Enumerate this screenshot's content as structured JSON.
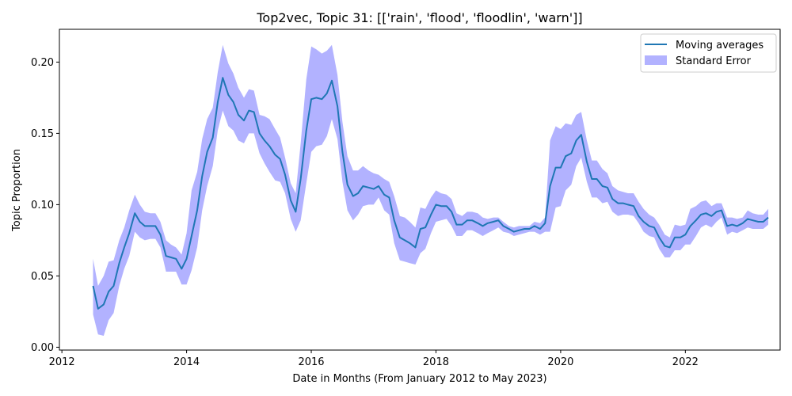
{
  "chart_data": {
    "type": "line",
    "title": "Top2vec, Topic 31: [['rain', 'flood', 'floodlin', 'warn']]",
    "xlabel": "Date in Months (From January 2012 to May 2023)",
    "ylabel": "Topic Proportion",
    "x_ticks": [
      "2012",
      "2014",
      "2016",
      "2018",
      "2020",
      "2022"
    ],
    "y_ticks": [
      "0.00",
      "0.05",
      "0.10",
      "0.15",
      "0.20"
    ],
    "xlim": [
      2011.96,
      2023.52
    ],
    "ylim": [
      -0.002,
      0.223
    ],
    "grid": false,
    "legend_position": "upper-right",
    "colors": {
      "line": "#1f77b4",
      "band": "#0000ff",
      "band_opacity": 0.3
    },
    "series": [
      {
        "name": "Moving averages",
        "kind": "line",
        "x": [
          2012.5,
          2012.58,
          2012.67,
          2012.75,
          2012.83,
          2012.92,
          2013.0,
          2013.08,
          2013.17,
          2013.25,
          2013.33,
          2013.42,
          2013.5,
          2013.58,
          2013.67,
          2013.75,
          2013.83,
          2013.92,
          2014.0,
          2014.08,
          2014.17,
          2014.25,
          2014.33,
          2014.42,
          2014.5,
          2014.58,
          2014.67,
          2014.75,
          2014.83,
          2014.92,
          2015.0,
          2015.08,
          2015.17,
          2015.25,
          2015.33,
          2015.42,
          2015.5,
          2015.58,
          2015.67,
          2015.75,
          2015.83,
          2015.92,
          2016.0,
          2016.08,
          2016.17,
          2016.25,
          2016.33,
          2016.42,
          2016.5,
          2016.58,
          2016.67,
          2016.75,
          2016.83,
          2016.92,
          2017.0,
          2017.08,
          2017.17,
          2017.25,
          2017.33,
          2017.42,
          2017.5,
          2017.58,
          2017.67,
          2017.75,
          2017.83,
          2017.92,
          2018.0,
          2018.08,
          2018.17,
          2018.25,
          2018.33,
          2018.42,
          2018.5,
          2018.58,
          2018.67,
          2018.75,
          2018.83,
          2018.92,
          2019.0,
          2019.08,
          2019.17,
          2019.25,
          2019.33,
          2019.42,
          2019.5,
          2019.58,
          2019.67,
          2019.75,
          2019.83,
          2019.92,
          2020.0,
          2020.08,
          2020.17,
          2020.25,
          2020.33,
          2020.42,
          2020.5,
          2020.58,
          2020.67,
          2020.75,
          2020.83,
          2020.92,
          2021.0,
          2021.08,
          2021.17,
          2021.25,
          2021.33,
          2021.42,
          2021.5,
          2021.58,
          2021.67,
          2021.75,
          2021.83,
          2021.92,
          2022.0,
          2022.08,
          2022.17,
          2022.25,
          2022.33,
          2022.42,
          2022.5,
          2022.58,
          2022.67,
          2022.75,
          2022.83,
          2022.92,
          2023.0,
          2023.08,
          2023.17,
          2023.25,
          2023.33
        ],
        "values": [
          0.043,
          0.027,
          0.03,
          0.039,
          0.043,
          0.059,
          0.07,
          0.08,
          0.094,
          0.088,
          0.085,
          0.085,
          0.085,
          0.079,
          0.064,
          0.063,
          0.062,
          0.055,
          0.062,
          0.078,
          0.096,
          0.12,
          0.137,
          0.147,
          0.172,
          0.189,
          0.177,
          0.172,
          0.163,
          0.159,
          0.166,
          0.165,
          0.15,
          0.145,
          0.141,
          0.135,
          0.132,
          0.121,
          0.103,
          0.095,
          0.118,
          0.152,
          0.174,
          0.175,
          0.174,
          0.178,
          0.187,
          0.169,
          0.137,
          0.114,
          0.106,
          0.108,
          0.113,
          0.112,
          0.111,
          0.113,
          0.107,
          0.105,
          0.089,
          0.077,
          0.075,
          0.073,
          0.07,
          0.083,
          0.084,
          0.093,
          0.1,
          0.099,
          0.099,
          0.095,
          0.086,
          0.086,
          0.089,
          0.089,
          0.087,
          0.085,
          0.087,
          0.088,
          0.089,
          0.085,
          0.083,
          0.081,
          0.082,
          0.083,
          0.083,
          0.085,
          0.083,
          0.087,
          0.113,
          0.126,
          0.126,
          0.134,
          0.136,
          0.145,
          0.149,
          0.13,
          0.118,
          0.118,
          0.113,
          0.112,
          0.104,
          0.101,
          0.101,
          0.1,
          0.099,
          0.092,
          0.088,
          0.085,
          0.084,
          0.077,
          0.071,
          0.07,
          0.077,
          0.077,
          0.079,
          0.085,
          0.089,
          0.093,
          0.094,
          0.092,
          0.095,
          0.096,
          0.085,
          0.086,
          0.085,
          0.087,
          0.09,
          0.089,
          0.088,
          0.088,
          0.091
        ]
      },
      {
        "name": "Standard Error",
        "kind": "band",
        "upper": [
          0.062,
          0.043,
          0.05,
          0.06,
          0.061,
          0.075,
          0.084,
          0.096,
          0.107,
          0.1,
          0.095,
          0.094,
          0.094,
          0.088,
          0.075,
          0.072,
          0.07,
          0.065,
          0.08,
          0.11,
          0.123,
          0.146,
          0.16,
          0.168,
          0.193,
          0.212,
          0.199,
          0.192,
          0.182,
          0.175,
          0.181,
          0.18,
          0.163,
          0.162,
          0.16,
          0.153,
          0.147,
          0.133,
          0.115,
          0.108,
          0.143,
          0.188,
          0.211,
          0.209,
          0.206,
          0.208,
          0.212,
          0.191,
          0.158,
          0.134,
          0.124,
          0.124,
          0.127,
          0.124,
          0.122,
          0.121,
          0.118,
          0.116,
          0.106,
          0.092,
          0.091,
          0.088,
          0.084,
          0.098,
          0.097,
          0.105,
          0.11,
          0.108,
          0.107,
          0.104,
          0.094,
          0.092,
          0.095,
          0.095,
          0.094,
          0.091,
          0.09,
          0.091,
          0.091,
          0.088,
          0.085,
          0.084,
          0.085,
          0.085,
          0.085,
          0.088,
          0.087,
          0.091,
          0.145,
          0.155,
          0.153,
          0.157,
          0.156,
          0.163,
          0.165,
          0.145,
          0.131,
          0.131,
          0.125,
          0.122,
          0.113,
          0.11,
          0.109,
          0.108,
          0.108,
          0.102,
          0.097,
          0.093,
          0.091,
          0.086,
          0.079,
          0.077,
          0.086,
          0.085,
          0.086,
          0.097,
          0.099,
          0.102,
          0.103,
          0.099,
          0.101,
          0.101,
          0.091,
          0.091,
          0.09,
          0.091,
          0.096,
          0.094,
          0.093,
          0.093,
          0.097
        ]
      }
    ],
    "band_lower": [
      0.023,
      0.009,
      0.008,
      0.019,
      0.024,
      0.043,
      0.055,
      0.064,
      0.081,
      0.077,
      0.075,
      0.076,
      0.076,
      0.07,
      0.053,
      0.053,
      0.053,
      0.044,
      0.044,
      0.054,
      0.07,
      0.096,
      0.113,
      0.127,
      0.152,
      0.166,
      0.155,
      0.152,
      0.145,
      0.143,
      0.15,
      0.15,
      0.136,
      0.129,
      0.123,
      0.117,
      0.116,
      0.108,
      0.09,
      0.081,
      0.089,
      0.115,
      0.137,
      0.141,
      0.142,
      0.148,
      0.16,
      0.146,
      0.116,
      0.096,
      0.089,
      0.093,
      0.099,
      0.1,
      0.1,
      0.105,
      0.096,
      0.093,
      0.073,
      0.061,
      0.06,
      0.059,
      0.058,
      0.066,
      0.069,
      0.08,
      0.088,
      0.089,
      0.09,
      0.085,
      0.078,
      0.078,
      0.082,
      0.082,
      0.08,
      0.078,
      0.08,
      0.082,
      0.084,
      0.081,
      0.08,
      0.078,
      0.079,
      0.08,
      0.081,
      0.081,
      0.079,
      0.081,
      0.081,
      0.098,
      0.099,
      0.11,
      0.114,
      0.127,
      0.133,
      0.116,
      0.105,
      0.105,
      0.101,
      0.102,
      0.095,
      0.092,
      0.093,
      0.093,
      0.092,
      0.087,
      0.081,
      0.078,
      0.077,
      0.069,
      0.063,
      0.063,
      0.068,
      0.068,
      0.072,
      0.072,
      0.078,
      0.084,
      0.086,
      0.084,
      0.088,
      0.091,
      0.079,
      0.081,
      0.08,
      0.082,
      0.084,
      0.083,
      0.083,
      0.083,
      0.086
    ]
  }
}
